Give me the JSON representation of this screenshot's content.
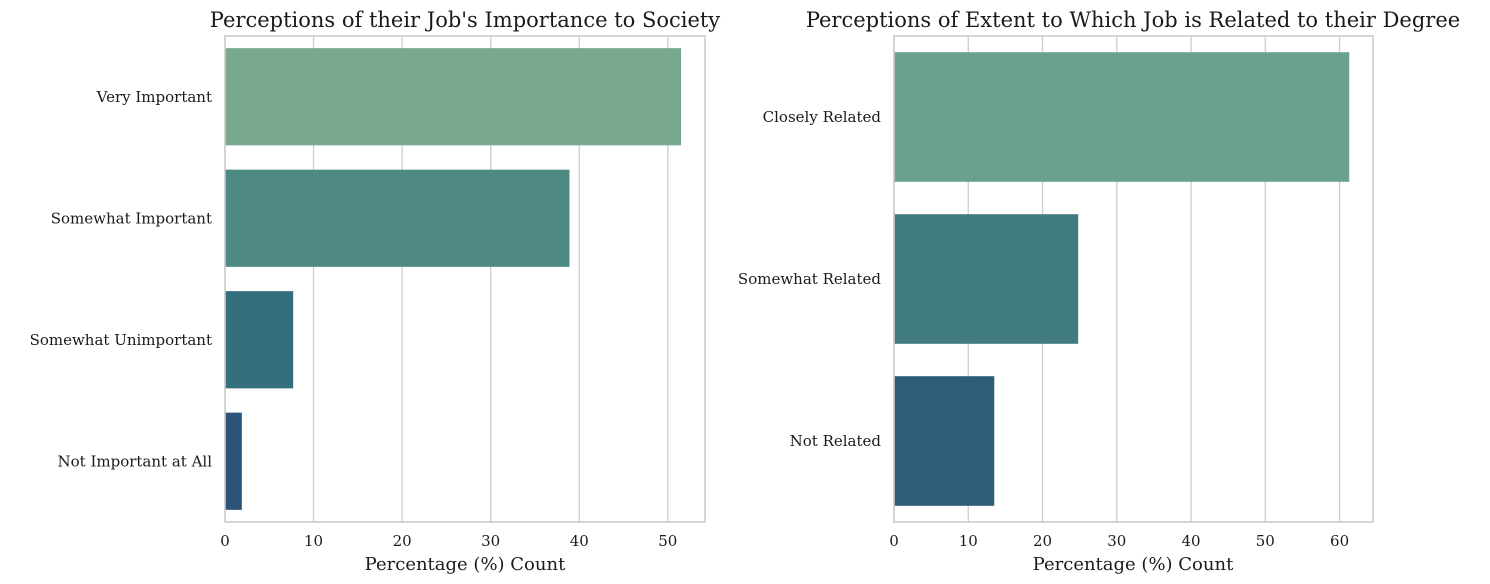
{
  "chart_data": [
    {
      "type": "bar",
      "orientation": "horizontal",
      "title": "Perceptions of their Job's Importance to Society",
      "xlabel": "Percentage (%) Count",
      "ylabel": "",
      "categories": [
        "Very Important",
        "Somewhat Important",
        "Somewhat Unimportant",
        "Not Important at All"
      ],
      "values": [
        51.5,
        38.9,
        7.7,
        1.9
      ],
      "colors": [
        "#78a98e",
        "#4e8984",
        "#336f7d",
        "#2c5478"
      ],
      "xlim": [
        0,
        54.2
      ],
      "xticks": [
        0,
        10,
        20,
        30,
        40,
        50
      ],
      "grid": "vertical",
      "legend": "none"
    },
    {
      "type": "bar",
      "orientation": "horizontal",
      "title": "Perceptions of Extent to Which Job is Related to their Degree",
      "xlabel": "Percentage (%) Count",
      "ylabel": "",
      "categories": [
        "Closely Related",
        "Somewhat Related",
        "Not Related"
      ],
      "values": [
        61.3,
        24.8,
        13.5
      ],
      "colors": [
        "#69a18c",
        "#417b82",
        "#2d5d79"
      ],
      "xlim": [
        0,
        64.5
      ],
      "xticks": [
        0,
        10,
        20,
        30,
        40,
        50,
        60
      ],
      "grid": "vertical",
      "legend": "none"
    }
  ]
}
